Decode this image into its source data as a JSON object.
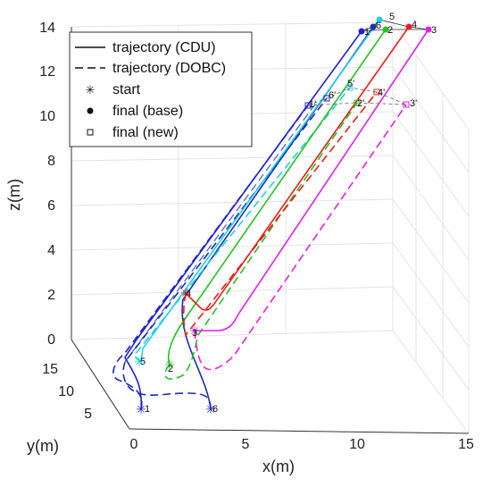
{
  "chart_data": {
    "type": "line",
    "title": "",
    "xlabel": "x(m)",
    "ylabel": "y(m)",
    "zlabel": "z(m)",
    "xlim": [
      0,
      15
    ],
    "ylim": [
      0,
      15
    ],
    "zlim": [
      0,
      14
    ],
    "x_ticks": [
      0,
      5,
      10,
      15
    ],
    "y_ticks": [
      5,
      10,
      15
    ],
    "z_ticks": [
      0,
      2,
      4,
      6,
      8,
      10,
      12,
      14
    ],
    "grid": true,
    "legend_position": "top-left",
    "legend": [
      {
        "label": "trajectory (CDU)",
        "style": "solid-line"
      },
      {
        "label": "trajectory (DOBC)",
        "style": "dashed-line"
      },
      {
        "label": "start",
        "style": "asterisk-marker"
      },
      {
        "label": "final (base)",
        "style": "filled-circle-marker"
      },
      {
        "label": "final (new)",
        "style": "open-square-marker"
      }
    ],
    "series": [
      {
        "id": "1",
        "final_base_label": "1",
        "final_new_label": "1'",
        "color": "#1f1fd6"
      },
      {
        "id": "2",
        "final_base_label": "2",
        "final_new_label": "2'",
        "color": "#22c422"
      },
      {
        "id": "3",
        "final_base_label": "3",
        "final_new_label": "3'",
        "color": "#e61ee6"
      },
      {
        "id": "4",
        "final_base_label": "4",
        "final_new_label": "4'",
        "color": "#ee1c1c"
      },
      {
        "id": "5",
        "final_base_label": "5",
        "final_new_label": "5'",
        "color": "#1ed2e6"
      },
      {
        "id": "6",
        "final_base_label": "6",
        "final_new_label": "6'",
        "color": "#1a2fb8"
      }
    ]
  }
}
